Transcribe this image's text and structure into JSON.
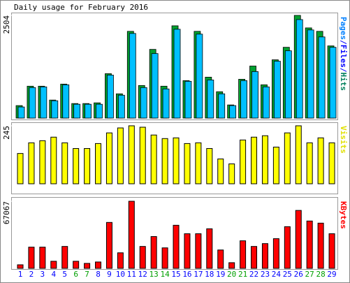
{
  "chart_data": [
    {
      "type": "bar2",
      "title": "Daily usage for February 2016",
      "ylim": [
        0,
        2504
      ],
      "yticks": [
        2504
      ],
      "label_parts": [
        {
          "text": "Pages",
          "color": "#0080ff"
        },
        {
          "text": "/",
          "color": "#0000ff"
        },
        {
          "text": "Files",
          "color": "#0000ff"
        },
        {
          "text": "/",
          "color": "#0000ff"
        },
        {
          "text": "Hits",
          "color": "#00805c"
        }
      ],
      "series": [
        {
          "name": "Hits",
          "color": "#00a030",
          "values": [
            305,
            778,
            778,
            440,
            829,
            355,
            355,
            372,
            1083,
            592,
            2115,
            795,
            1675,
            778,
            2250,
            914,
            2115,
            998,
            643,
            321,
            947,
            1269,
            812,
            1421,
            1726,
            2504,
            2199,
            2115,
            1760
          ]
        },
        {
          "name": "Files",
          "color": "#00c0ff",
          "values": [
            271,
            744,
            761,
            423,
            812,
            338,
            338,
            338,
            1049,
            558,
            2064,
            744,
            1573,
            711,
            2166,
            897,
            2047,
            930,
            592,
            305,
            914,
            1134,
            761,
            1387,
            1641,
            2402,
            2149,
            1979,
            1726
          ]
        }
      ]
    },
    {
      "type": "bar",
      "label": "Visits",
      "label_color": "#e0e000",
      "color": "#ffff00",
      "ylim": [
        0,
        245
      ],
      "yticks": [
        245
      ],
      "values": [
        128,
        173,
        182,
        197,
        173,
        149,
        149,
        170,
        215,
        236,
        245,
        239,
        206,
        191,
        194,
        170,
        173,
        149,
        105,
        84,
        185,
        197,
        203,
        155,
        215,
        245,
        173,
        194,
        173
      ]
    },
    {
      "type": "bar",
      "label": "KBytes",
      "label_color": "#ff0000",
      "color": "#ff0000",
      "ylim": [
        0,
        67067
      ],
      "yticks": [
        67067
      ],
      "categories": [
        "1",
        "2",
        "3",
        "4",
        "5",
        "6",
        "7",
        "8",
        "9",
        "10",
        "11",
        "12",
        "13",
        "14",
        "15",
        "16",
        "17",
        "18",
        "19",
        "20",
        "21",
        "22",
        "23",
        "24",
        "25",
        "26",
        "27",
        "28",
        "29"
      ],
      "category_colors": [
        "#0000ff",
        "#0000ff",
        "#0000ff",
        "#0000ff",
        "#0000ff",
        "#00a000",
        "#00a000",
        "#0000ff",
        "#0000ff",
        "#0000ff",
        "#0000ff",
        "#0000ff",
        "#00a000",
        "#00a000",
        "#0000ff",
        "#0000ff",
        "#0000ff",
        "#0000ff",
        "#0000ff",
        "#00a000",
        "#00a000",
        "#0000ff",
        "#0000ff",
        "#0000ff",
        "#0000ff",
        "#0000ff",
        "#00a000",
        "#00a000",
        "#0000ff"
      ],
      "values": [
        3530,
        21180,
        21180,
        7060,
        21886,
        7060,
        4942,
        6354,
        45890,
        15532,
        67067,
        21886,
        31770,
        20474,
        43066,
        34594,
        34594,
        39536,
        18356,
        5648,
        27534,
        21886,
        24710,
        29652,
        41654,
        57892,
        47302,
        45184,
        34594
      ]
    }
  ]
}
